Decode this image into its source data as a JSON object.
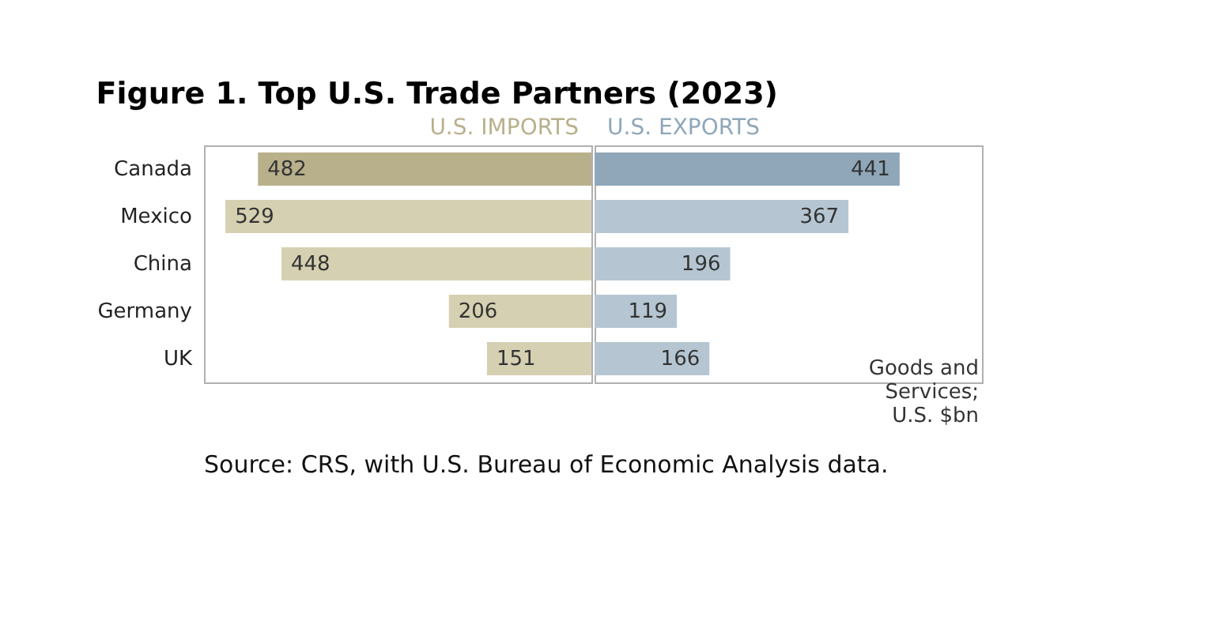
{
  "chart_data": [
    {
      "type": "bar",
      "orientation": "horizontal",
      "title": "Figure 1. Top U.S. Trade Partners (2023)",
      "categories": [
        "Canada",
        "Mexico",
        "China",
        "Germany",
        "UK"
      ],
      "series": [
        {
          "name": "U.S. IMPORTS",
          "values": [
            482,
            529,
            448,
            206,
            151
          ],
          "colors": [
            "#b8b08b",
            "#d6d0b2",
            "#d6d0b2",
            "#d6d0b2",
            "#d6d0b2"
          ]
        }
      ],
      "xlim": [
        560,
        0
      ],
      "data_labels": true,
      "tick_labels": "y",
      "annotations": [
        "Source: CRS, with U.S. Bureau of Economic Analysis data."
      ]
    },
    {
      "type": "bar",
      "orientation": "horizontal",
      "categories": [
        null,
        null,
        null,
        null,
        null
      ],
      "series": [
        {
          "name": "U.S. EXPORTS",
          "values": [
            441,
            367,
            196,
            119,
            166
          ],
          "colors": [
            "#8fa7b9",
            "#b5c6d2",
            "#b5c6d2",
            "#b5c6d2",
            "#b5c6d2"
          ]
        }
      ],
      "xlim": [
        0,
        560
      ],
      "data_labels": true,
      "tick_labels": false,
      "annotations": [
        "Goods and\nServices;\nU.S. $bn"
      ]
    }
  ]
}
